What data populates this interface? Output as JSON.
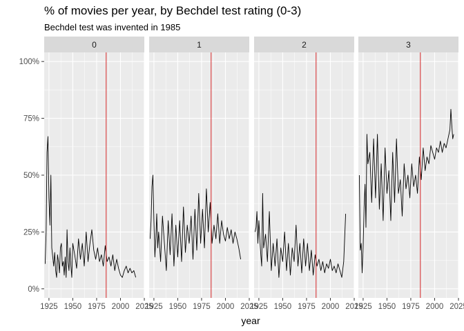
{
  "chart_data": {
    "type": "line",
    "title": "% of movies per year, by Bechdel test rating (0-3)",
    "subtitle": "Bechdel test was invented in 1985",
    "xlabel": "year",
    "ylabel": "",
    "xlim": [
      1920,
      2025
    ],
    "ylim": [
      -0.04,
      1.04
    ],
    "x_ticks": [
      1925,
      1950,
      1975,
      2000,
      2025
    ],
    "y_ticks": [
      0,
      0.25,
      0.5,
      0.75,
      1.0
    ],
    "y_tick_labels": [
      "0%",
      "25%",
      "50%",
      "75%",
      "100%"
    ],
    "reference_line": {
      "x": 1985,
      "color": "#d62728"
    },
    "line_color": "#000000",
    "panel_background": "#ebebeb",
    "strip_background": "#d9d9d9",
    "grid": true,
    "facets": [
      {
        "label": "0",
        "x": [
          1921,
          1922,
          1923,
          1924,
          1925,
          1926,
          1927,
          1928,
          1929,
          1930,
          1931,
          1932,
          1933,
          1934,
          1935,
          1936,
          1937,
          1938,
          1939,
          1940,
          1941,
          1942,
          1943,
          1944,
          1945,
          1946,
          1947,
          1948,
          1949,
          1950,
          1952,
          1954,
          1956,
          1958,
          1960,
          1962,
          1964,
          1966,
          1968,
          1970,
          1972,
          1974,
          1976,
          1978,
          1980,
          1982,
          1984,
          1986,
          1988,
          1990,
          1992,
          1994,
          1996,
          1998,
          2000,
          2002,
          2004,
          2006,
          2008,
          2010,
          2012,
          2014,
          2016
        ],
        "y": [
          0.11,
          0.25,
          0.6,
          0.67,
          0.4,
          0.28,
          0.5,
          0.18,
          0.14,
          0.1,
          0.16,
          0.08,
          0.05,
          0.15,
          0.12,
          0.07,
          0.18,
          0.2,
          0.1,
          0.12,
          0.06,
          0.14,
          0.05,
          0.26,
          0.12,
          0.08,
          0.18,
          0.1,
          0.05,
          0.2,
          0.15,
          0.09,
          0.22,
          0.13,
          0.2,
          0.1,
          0.25,
          0.12,
          0.2,
          0.26,
          0.17,
          0.13,
          0.18,
          0.12,
          0.15,
          0.1,
          0.19,
          0.12,
          0.14,
          0.1,
          0.15,
          0.08,
          0.13,
          0.09,
          0.06,
          0.05,
          0.08,
          0.1,
          0.07,
          0.09,
          0.07,
          0.08,
          0.05
        ]
      },
      {
        "label": "1",
        "x": [
          1921,
          1922,
          1923,
          1924,
          1925,
          1926,
          1927,
          1928,
          1929,
          1930,
          1932,
          1934,
          1936,
          1938,
          1940,
          1942,
          1944,
          1946,
          1948,
          1950,
          1952,
          1954,
          1956,
          1958,
          1960,
          1962,
          1964,
          1966,
          1968,
          1970,
          1972,
          1974,
          1976,
          1978,
          1980,
          1982,
          1984,
          1986,
          1988,
          1990,
          1992,
          1994,
          1996,
          1998,
          2000,
          2002,
          2004,
          2006,
          2008,
          2010,
          2012,
          2014,
          2016
        ],
        "y": [
          0.22,
          0.3,
          0.45,
          0.5,
          0.3,
          0.14,
          0.22,
          0.33,
          0.18,
          0.25,
          0.12,
          0.32,
          0.2,
          0.08,
          0.3,
          0.15,
          0.33,
          0.1,
          0.28,
          0.14,
          0.3,
          0.12,
          0.36,
          0.16,
          0.28,
          0.2,
          0.32,
          0.13,
          0.35,
          0.17,
          0.42,
          0.2,
          0.35,
          0.18,
          0.44,
          0.25,
          0.38,
          0.2,
          0.28,
          0.22,
          0.33,
          0.2,
          0.3,
          0.24,
          0.21,
          0.27,
          0.22,
          0.26,
          0.2,
          0.25,
          0.22,
          0.18,
          0.13
        ]
      },
      {
        "label": "2",
        "x": [
          1921,
          1922,
          1923,
          1924,
          1925,
          1926,
          1927,
          1928,
          1929,
          1930,
          1932,
          1934,
          1936,
          1938,
          1940,
          1942,
          1944,
          1946,
          1948,
          1950,
          1952,
          1954,
          1956,
          1958,
          1960,
          1962,
          1964,
          1966,
          1968,
          1970,
          1972,
          1974,
          1976,
          1978,
          1980,
          1982,
          1984,
          1986,
          1988,
          1990,
          1992,
          1994,
          1996,
          1998,
          2000,
          2002,
          2004,
          2006,
          2008,
          2010,
          2012,
          2014,
          2016
        ],
        "y": [
          0.25,
          0.27,
          0.34,
          0.2,
          0.3,
          0.22,
          0.15,
          0.1,
          0.42,
          0.18,
          0.24,
          0.12,
          0.34,
          0.08,
          0.2,
          0.1,
          0.22,
          0.05,
          0.18,
          0.12,
          0.25,
          0.08,
          0.2,
          0.06,
          0.18,
          0.12,
          0.28,
          0.1,
          0.2,
          0.07,
          0.22,
          0.1,
          0.2,
          0.08,
          0.17,
          0.06,
          0.15,
          0.1,
          0.13,
          0.08,
          0.12,
          0.07,
          0.11,
          0.09,
          0.13,
          0.08,
          0.1,
          0.07,
          0.11,
          0.08,
          0.05,
          0.12,
          0.33
        ]
      },
      {
        "label": "3",
        "x": [
          1921,
          1922,
          1923,
          1924,
          1925,
          1926,
          1927,
          1928,
          1929,
          1930,
          1932,
          1934,
          1936,
          1938,
          1940,
          1942,
          1944,
          1946,
          1948,
          1950,
          1952,
          1954,
          1956,
          1958,
          1960,
          1962,
          1964,
          1966,
          1968,
          1970,
          1972,
          1974,
          1976,
          1978,
          1980,
          1982,
          1984,
          1986,
          1988,
          1990,
          1992,
          1994,
          1996,
          1998,
          2000,
          2002,
          2004,
          2006,
          2008,
          2010,
          2012,
          2014,
          2016,
          2017,
          2018,
          2019,
          2020
        ],
        "y": [
          0.5,
          0.17,
          0.2,
          0.07,
          0.18,
          0.36,
          0.46,
          0.27,
          0.68,
          0.55,
          0.6,
          0.38,
          0.66,
          0.4,
          0.68,
          0.35,
          0.55,
          0.3,
          0.62,
          0.42,
          0.52,
          0.3,
          0.6,
          0.38,
          0.66,
          0.42,
          0.48,
          0.32,
          0.55,
          0.44,
          0.5,
          0.4,
          0.55,
          0.45,
          0.5,
          0.42,
          0.58,
          0.48,
          0.62,
          0.52,
          0.58,
          0.55,
          0.63,
          0.6,
          0.57,
          0.62,
          0.6,
          0.65,
          0.6,
          0.64,
          0.62,
          0.66,
          0.7,
          0.79,
          0.72,
          0.66,
          0.68
        ]
      }
    ]
  }
}
